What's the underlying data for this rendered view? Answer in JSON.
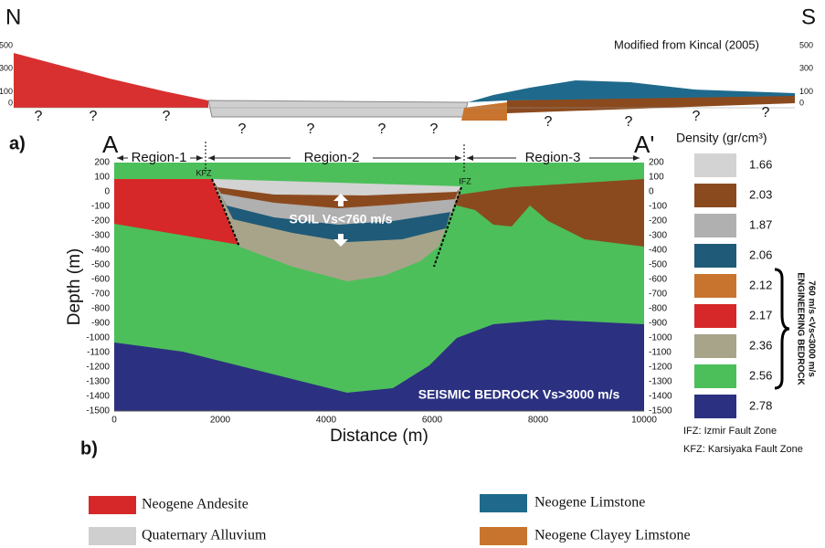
{
  "section_a": {
    "label": "a)",
    "north": "N",
    "south": "S",
    "credit": "Modified from Kincal (2005)",
    "left_ticks": [
      500,
      300,
      100,
      0
    ],
    "right_ticks": [
      500,
      300,
      100,
      0
    ],
    "question_marks": [
      "?",
      "?",
      "?",
      "?",
      "?",
      "?",
      "?",
      "?",
      "?",
      "?",
      "?"
    ]
  },
  "section_b": {
    "label": "b)",
    "start": "A",
    "end": "A'",
    "regions": [
      "Region-1",
      "Region-2",
      "Region-3"
    ],
    "faults": [
      "KFZ",
      "IFZ"
    ],
    "soil_note": "SOIL Vs<760 m/s",
    "bedrock_note": "SEISMIC BEDROCK Vs>3000 m/s",
    "y_label": "Depth (m)",
    "x_label": "Distance (m)",
    "depth_ticks": [
      200,
      100,
      0,
      -100,
      -200,
      -300,
      -400,
      -500,
      -600,
      -700,
      -800,
      -900,
      -1000,
      -1100,
      -1200,
      -1300,
      -1400,
      -1500
    ],
    "distance_ticks": [
      0,
      2000,
      4000,
      6000,
      8000,
      10000
    ]
  },
  "density_legend": {
    "title": "Density (gr/cm³)",
    "values": [
      1.66,
      2.03,
      1.87,
      2.06,
      2.12,
      2.17,
      2.36,
      2.56,
      2.78
    ],
    "bracket_lines": [
      "ENGINEERING BEDROCK",
      "760 m/s <Vs<3000 m/s"
    ],
    "notes": [
      "IFZ: Izmir Fault Zone",
      "KFZ: Karsiyaka Fault Zone"
    ]
  },
  "unit_legend": [
    "Neogene Andesite",
    "Quaternary Alluvium",
    "Neogene Limstone",
    "Neogene Clayey Limstone"
  ]
}
